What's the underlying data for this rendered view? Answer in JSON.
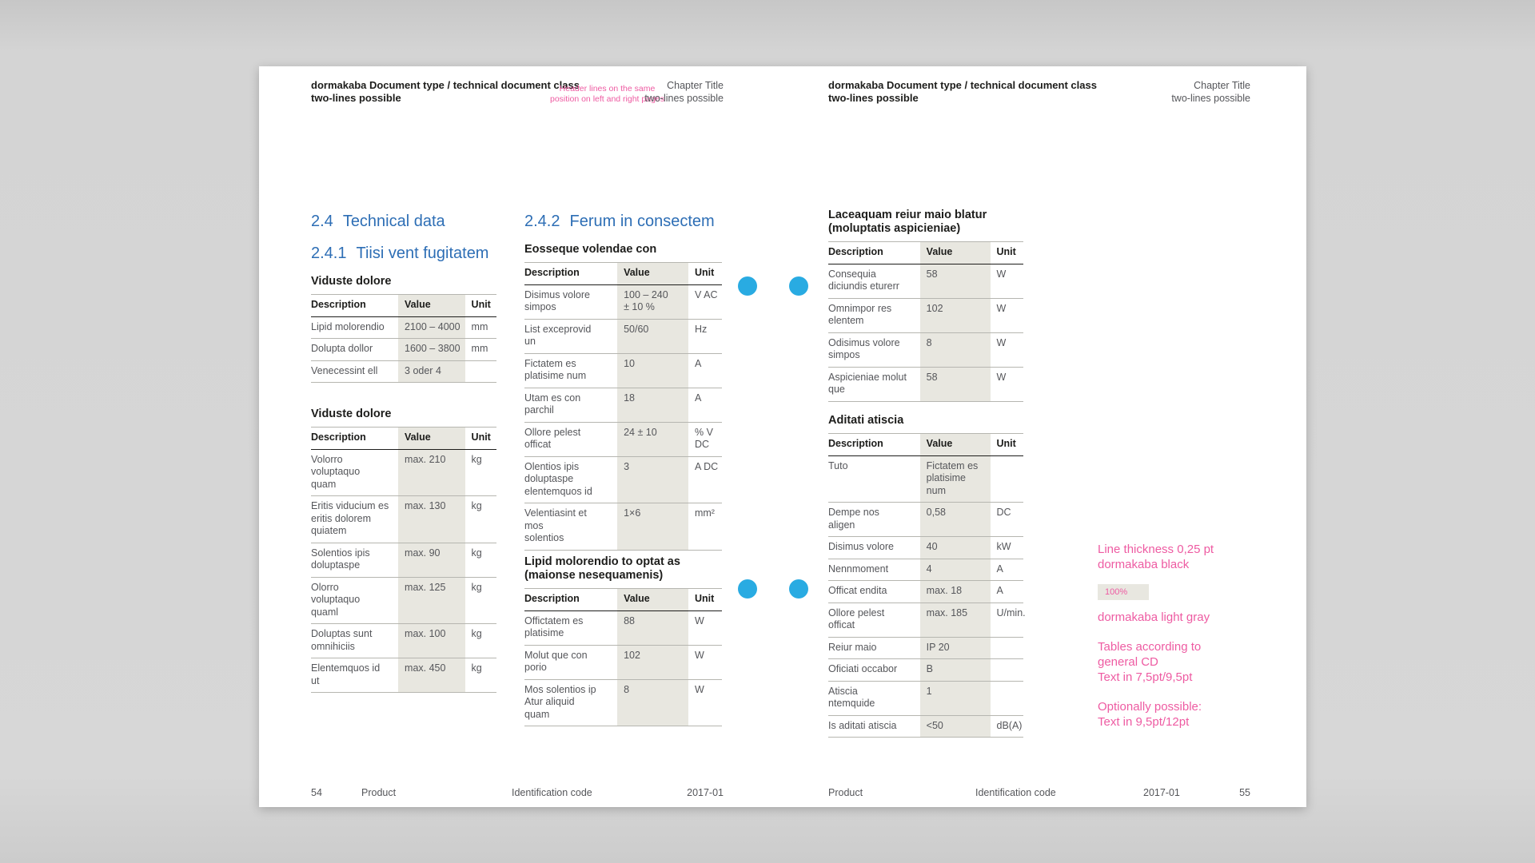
{
  "colors": {
    "brand_blue": "#2d6eb5",
    "accent_pink": "#ee5ba2",
    "dot_blue": "#29abe2",
    "beige": "#e8e7e0",
    "line_gray": "#b6b6b0",
    "ink": "#1d1d1b",
    "body_gray": "#55565a"
  },
  "annotations": {
    "header_note": "Header lines on the same\nposition on left and right pages",
    "note_line_thickness": "Line thickness 0,25 pt\ndormakaba black",
    "swatch_label": "100%",
    "note_light_gray": "dormakaba light gray",
    "note_tables": "Tables according to\ngeneral CD\nText in 7,5pt/9,5pt",
    "note_optional": "Optionally possible:\nText in 9,5pt/12pt"
  },
  "left_page": {
    "header": {
      "doc_type": "dormakaba Document type / technical document class\ntwo-lines possible",
      "chapter": "Chapter Title\ntwo-lines possible"
    },
    "footer": {
      "page_number": "54",
      "product": "Product",
      "identification": "Identification code",
      "date": "2017-01"
    },
    "col1": {
      "heading1": {
        "num": "2.4",
        "text": "Technical data"
      },
      "heading2": {
        "num": "2.4.1",
        "text": "Tiisi vent fugitatem"
      },
      "tables": [
        {
          "title": "Viduste dolore",
          "headers": [
            "Description",
            "Value",
            "Unit"
          ],
          "rows": [
            [
              "Lipid molorendio",
              "2100 – 4000",
              "mm"
            ],
            [
              "Dolupta dollor",
              "1600 – 3800",
              "mm"
            ],
            [
              "Venecessint ell",
              "3 oder 4",
              ""
            ]
          ]
        },
        {
          "title": "Viduste dolore",
          "headers": [
            "Description",
            "Value",
            "Unit"
          ],
          "rows": [
            [
              "Volorro\nvoluptaquo\nquam",
              "max. 210",
              "kg"
            ],
            [
              "Eritis viducium es\neritis dolorem\nquiatem",
              "max. 130",
              "kg"
            ],
            [
              "Solentios ipis\ndoluptaspe",
              "max. 90",
              "kg"
            ],
            [
              "Olorro\nvoluptaquo\nquaml",
              "max. 125",
              "kg"
            ],
            [
              "Doluptas sunt\nomnihiciis",
              "max. 100",
              "kg"
            ],
            [
              "Elentemquos id\nut",
              "max. 450",
              "kg"
            ]
          ]
        }
      ]
    },
    "col2": {
      "heading": {
        "num": "2.4.2",
        "text": "Ferum in consectem"
      },
      "tables": [
        {
          "title": "Eosseque volendae con",
          "headers": [
            "Description",
            "Value",
            "Unit"
          ],
          "rows": [
            [
              "Disimus volore\nsimpos",
              "100 – 240\n± 10 %",
              "V AC"
            ],
            [
              "List exceprovid\nun",
              "50/60",
              "Hz"
            ],
            [
              "Fictatem es\nplatisime num",
              "10",
              "A"
            ],
            [
              "Utam es con\nparchil",
              "18",
              "A"
            ],
            [
              "Ollore pelest\nofficat",
              "24 ± 10",
              "% V\nDC"
            ],
            [
              "Olentios ipis\ndoluptaspe\nelentemquos id",
              "3",
              "A DC"
            ],
            [
              "Velentiasint et\nmos\nsolentios",
              "1×6",
              "mm²"
            ]
          ]
        },
        {
          "title": "Lipid molorendio to optat as\n(maionse nesequamenis)",
          "headers": [
            "Description",
            "Value",
            "Unit"
          ],
          "rows": [
            [
              "Offictatem es\nplatisime",
              "88",
              "W"
            ],
            [
              "Molut que con\nporio",
              "102",
              "W"
            ],
            [
              "Mos solentios ip\nAtur aliquid\nquam",
              "8",
              "W"
            ]
          ]
        }
      ]
    }
  },
  "right_page": {
    "header": {
      "doc_type": "dormakaba Document type / technical document class\ntwo-lines possible",
      "chapter": "Chapter Title\ntwo-lines possible"
    },
    "footer": {
      "page_number": "55",
      "product": "Product",
      "identification": "Identification code",
      "date": "2017-01"
    },
    "col": {
      "tables": [
        {
          "title": "Laceaquam reiur maio blatur\n(moluptatis aspicieniae)",
          "headers": [
            "Description",
            "Value",
            "Unit"
          ],
          "rows": [
            [
              "Consequia\ndiciundis eturerr",
              "58",
              "W"
            ],
            [
              "Omnimpor res\nelentem",
              "102",
              "W"
            ],
            [
              "Odisimus volore\nsimpos",
              "8",
              "W"
            ],
            [
              "Aspicieniae molut\nque",
              "58",
              "W"
            ]
          ]
        },
        {
          "title": "Aditati atiscia",
          "headers": [
            "Description",
            "Value",
            "Unit"
          ],
          "rows": [
            [
              "Tuto",
              "Fictatem es\nplatisime\nnum",
              ""
            ],
            [
              "Dempe nos\naligen",
              "0,58",
              "DC"
            ],
            [
              "Disimus volore",
              "40",
              "kW"
            ],
            [
              "Nennmoment",
              "4",
              "A"
            ],
            [
              "Officat endita",
              "max. 18",
              "A"
            ],
            [
              "Ollore pelest\nofficat",
              "max. 185",
              "U/min."
            ],
            [
              "Reiur maio",
              "IP 20",
              ""
            ],
            [
              "Oficiati occabor",
              "B",
              ""
            ],
            [
              "Atiscia\nntemquide",
              "1",
              ""
            ],
            [
              "Is aditati atiscia",
              "<50",
              "dB(A)"
            ]
          ]
        }
      ]
    }
  }
}
